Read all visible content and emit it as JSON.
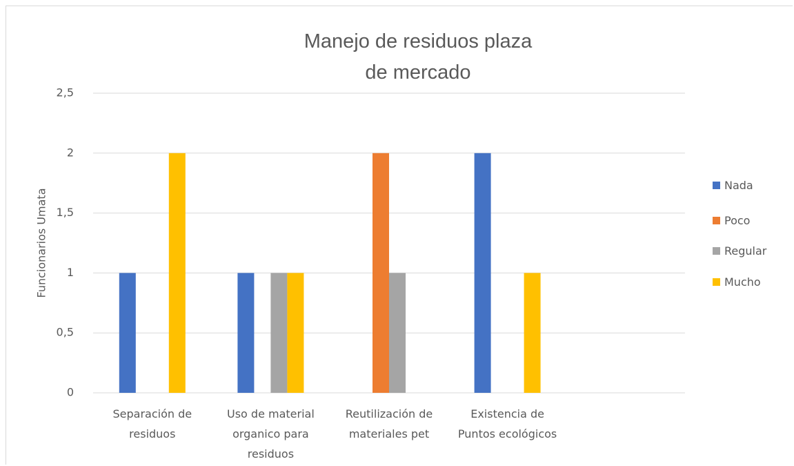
{
  "chart_data": {
    "type": "bar",
    "title": "Manejo de residuos plaza de mercado",
    "y_label": "Funcionarios Umata",
    "categories": [
      "Separación de residuos",
      "Uso de material organico para residuos",
      "Reutilización de materiales pet",
      "Existencia de Puntos ecológicos",
      null
    ],
    "series": [
      {
        "name": "Nada",
        "color": "#4472c4",
        "values": [
          1,
          1,
          0,
          2,
          null
        ]
      },
      {
        "name": "Poco",
        "color": "#ed7d31",
        "values": [
          0,
          0,
          2,
          0,
          null
        ]
      },
      {
        "name": "Regular",
        "color": "#a5a5a5",
        "values": [
          0,
          1,
          1,
          0,
          null
        ]
      },
      {
        "name": "Mucho",
        "color": "#ffc000",
        "values": [
          2,
          1,
          0,
          1,
          null
        ]
      }
    ],
    "ylim": [
      0,
      2.5
    ],
    "yticks": [
      0,
      {
        "value": 0.5,
        "label": "0,5"
      },
      1,
      {
        "value": 1.5,
        "label": "1,5"
      },
      2,
      {
        "value": 2.5,
        "label": "2,5"
      }
    ],
    "grid": true,
    "legend": "right"
  }
}
